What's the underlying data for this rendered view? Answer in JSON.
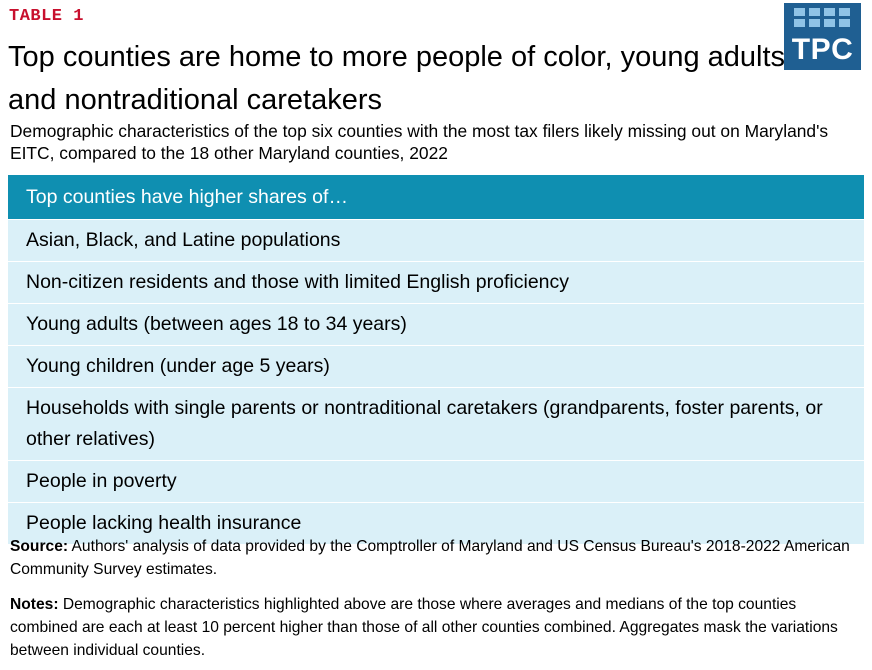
{
  "header": {
    "table_tag": "TABLE 1",
    "title": "Top counties are home to more people of color, young adults, and nontraditional caretakers",
    "subtitle": "Demographic characteristics of the top six counties with the most tax filers likely missing out on Maryland's EITC, compared to the 18 other Maryland counties, 2022"
  },
  "logo": {
    "text": "TPC",
    "color": "#1f5f92",
    "accent": "#8fc3e6"
  },
  "table": {
    "header": "Top counties have higher shares of…",
    "header_color": "#0f8fb1",
    "row_color": "#daf0f8",
    "rows": [
      "Asian, Black, and Latine populations",
      "Non-citizen residents and those with limited English proficiency",
      "Young adults (between ages 18 to 34 years)",
      "Young children (under age 5 years)",
      "Households with single parents or nontraditional caretakers (grandparents, foster parents, or other relatives)",
      "People in poverty",
      "People lacking health insurance"
    ]
  },
  "footer": {
    "source_label": "Source:",
    "source_text": " Authors' analysis of data provided by the Comptroller of Maryland and US Census Bureau's 2018-2022 American Community Survey estimates.",
    "notes_label": "Notes:",
    "notes_text": " Demographic characteristics highlighted above are those where averages and medians of the top counties combined are each at least 10 percent higher than those of all other counties combined. Aggregates mask the variations between individual counties."
  }
}
